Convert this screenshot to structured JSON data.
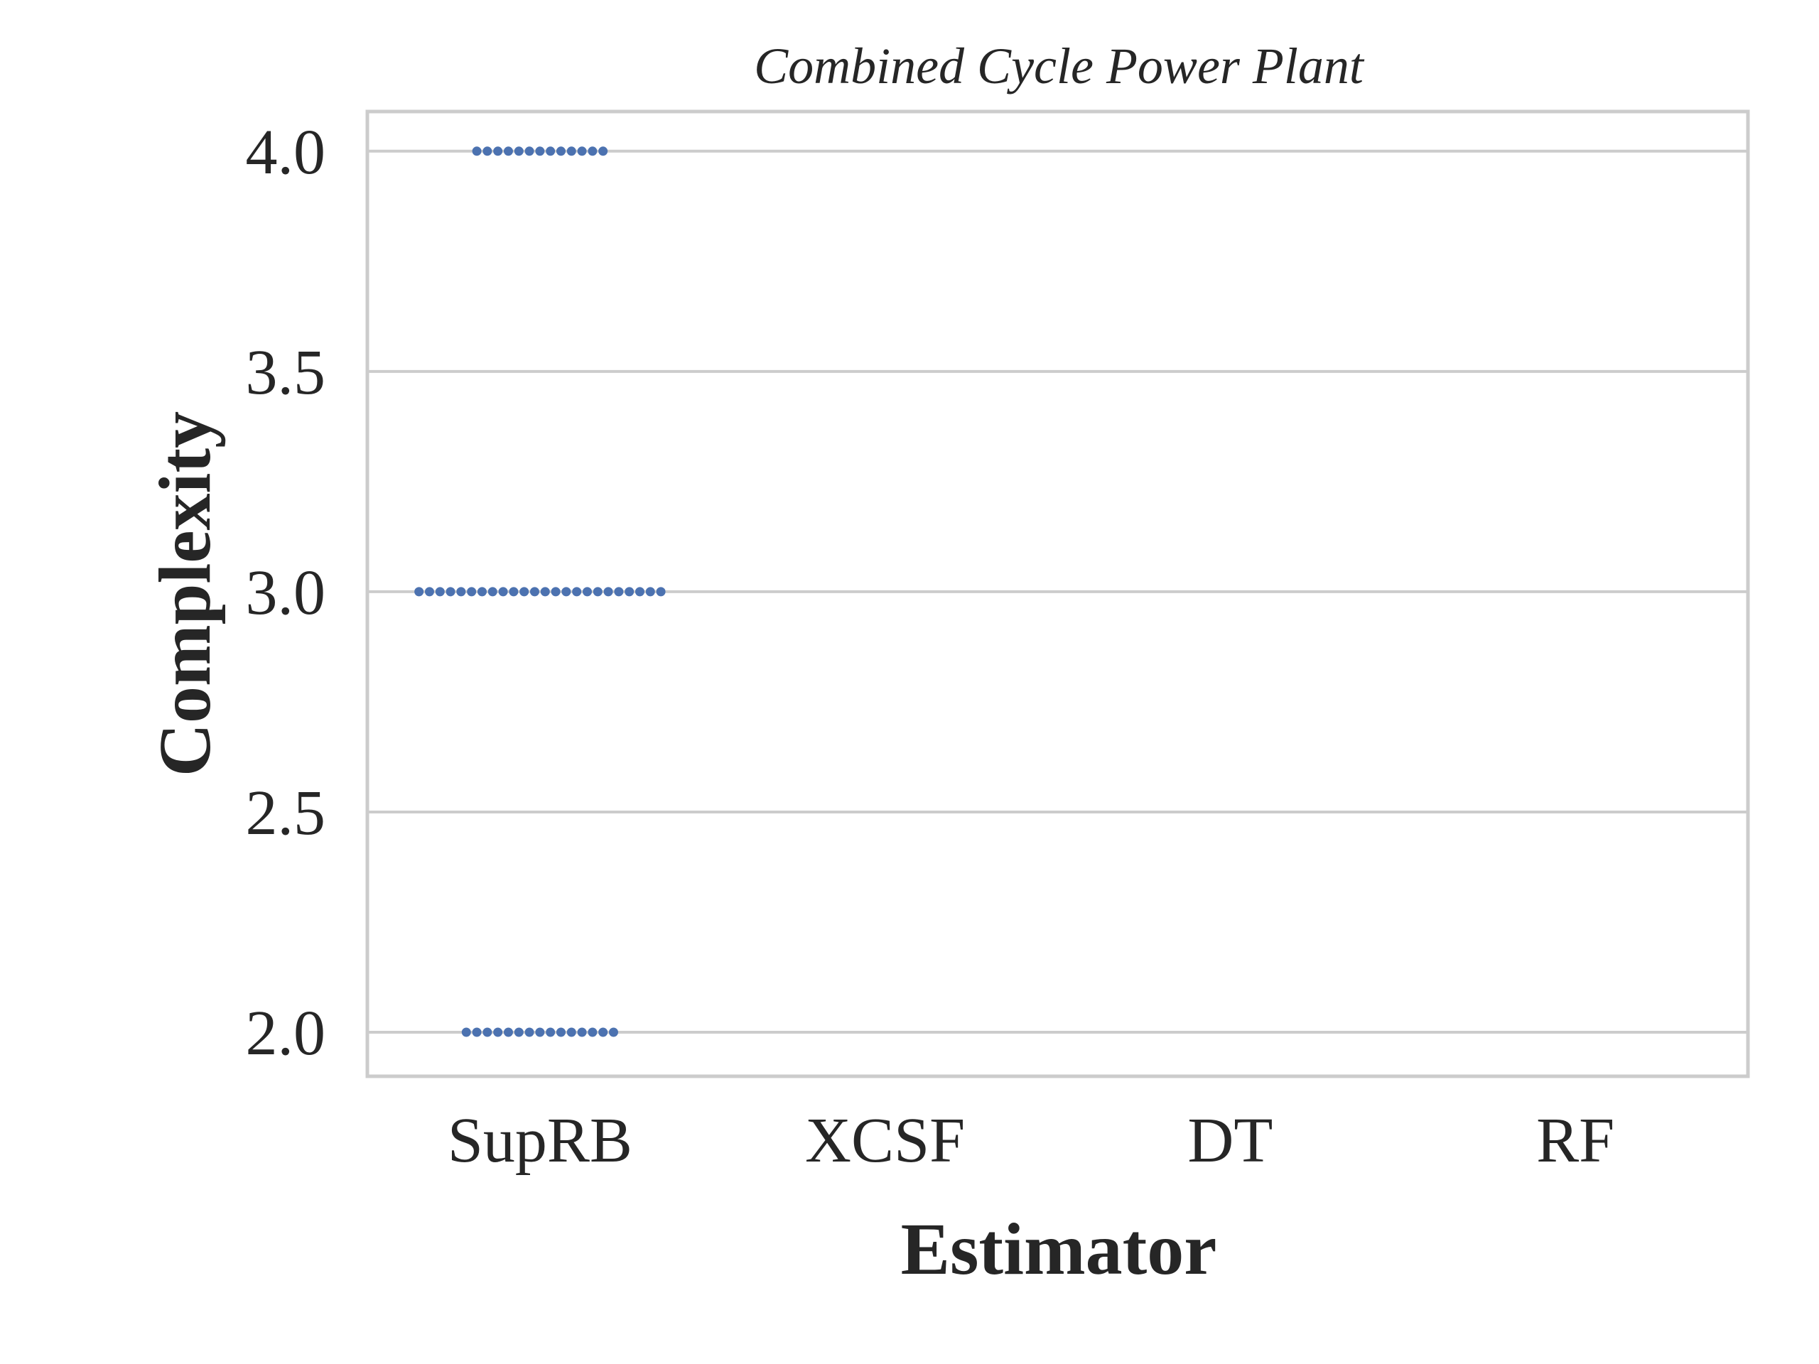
{
  "chart_data": {
    "type": "scatter",
    "subtype": "swarm",
    "title": "Combined Cycle Power Plant",
    "xlabel": "Estimator",
    "ylabel": "Complexity",
    "categories": [
      "SupRB",
      "XCSF",
      "DT",
      "RF"
    ],
    "ylim": [
      1.9,
      4.09
    ],
    "yticks": [
      2.0,
      2.5,
      3.0,
      3.5,
      4.0
    ],
    "ytick_labels": [
      "2.0",
      "2.5",
      "3.0",
      "3.5",
      "4.0"
    ],
    "grid": "horizontal",
    "point_color": "#4c72b0",
    "series": [
      {
        "category": "SupRB",
        "groups": [
          {
            "value": 4.0,
            "count": 13
          },
          {
            "value": 3.0,
            "count": 24
          },
          {
            "value": 2.0,
            "count": 15
          }
        ]
      }
    ]
  }
}
